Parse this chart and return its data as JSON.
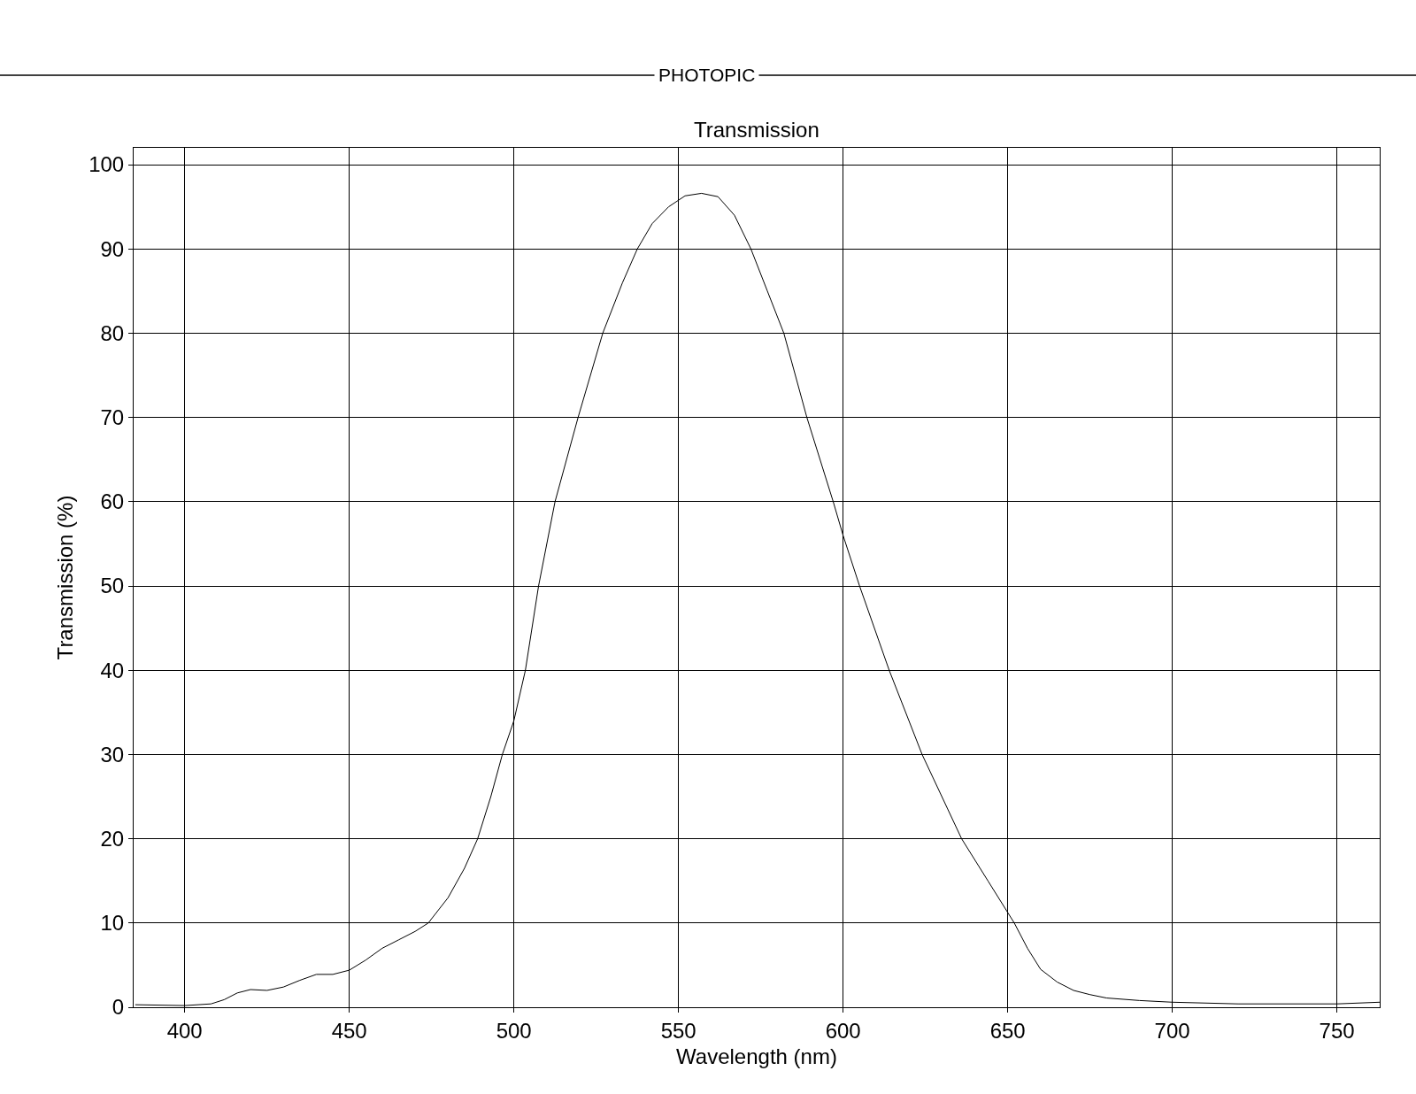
{
  "chart_data": {
    "type": "line",
    "title": "PHOTOPIC",
    "subtitle": "Transmission",
    "xlabel": "Wavelength (nm)",
    "ylabel": "Transmission (%)",
    "x": [
      385,
      400,
      408,
      412,
      416,
      420,
      425,
      430,
      435,
      440,
      445,
      450,
      455,
      460,
      465,
      470,
      474,
      480,
      485,
      489,
      493,
      496.5,
      500,
      503.5,
      507.5,
      512.5,
      519.5,
      527,
      533,
      537.5,
      542,
      547,
      552,
      557,
      562,
      567,
      572,
      577,
      582,
      589,
      597,
      600,
      605,
      614,
      624,
      630,
      636,
      644,
      652,
      656,
      660,
      665,
      670,
      675,
      680,
      690,
      700,
      720,
      750,
      763
    ],
    "series": [
      {
        "color": "#000000",
        "values": [
          0.3,
          0.2,
          0.4,
          0.9,
          1.7,
          2.1,
          2.0,
          2.4,
          3.2,
          3.9,
          3.9,
          4.4,
          5.6,
          7.0,
          8.0,
          9.0,
          10,
          13,
          16.5,
          20,
          25,
          30,
          34,
          40,
          50,
          60,
          70,
          80,
          86,
          90,
          93,
          95,
          96.3,
          96.6,
          96.2,
          94,
          90,
          85,
          80,
          70,
          60,
          56,
          50,
          40,
          30,
          25,
          20,
          15,
          10,
          7,
          4.5,
          3,
          2,
          1.5,
          1.1,
          0.8,
          0.6,
          0.4,
          0.4,
          0.6
        ]
      }
    ],
    "xlim": [
      384.5,
      763
    ],
    "ylim": [
      0,
      102
    ],
    "xticks": [
      400,
      450,
      500,
      550,
      600,
      650,
      700,
      750
    ],
    "yticks": [
      0,
      10,
      20,
      30,
      40,
      50,
      60,
      70,
      80,
      90,
      100
    ],
    "grid": true,
    "marker": "none",
    "line_style": "solid"
  }
}
